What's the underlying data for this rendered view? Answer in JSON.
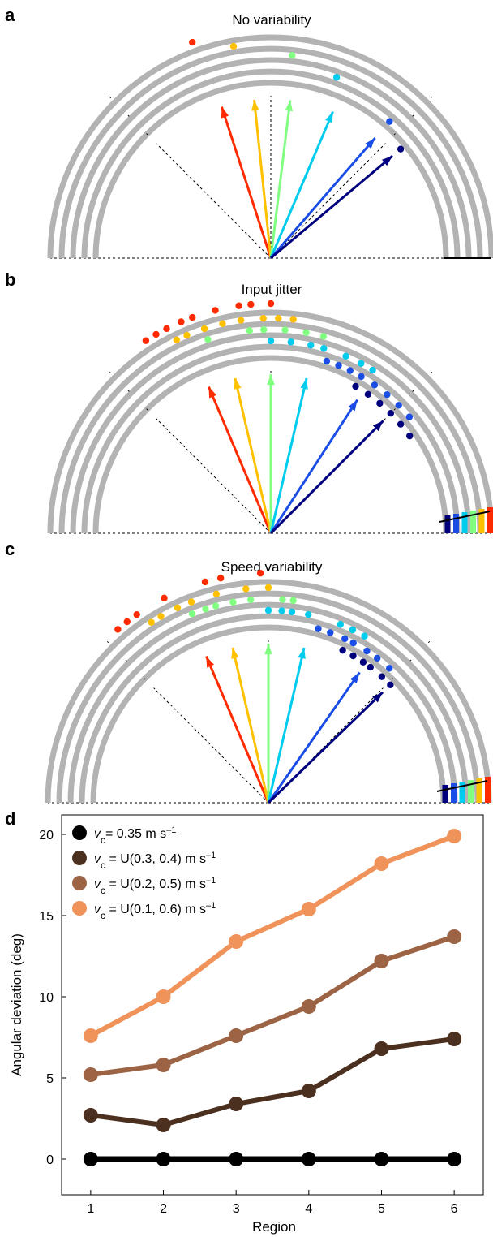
{
  "figure": {
    "panels": [
      {
        "letter": "a",
        "title": "No variability"
      },
      {
        "letter": "b",
        "title": "Input jitter"
      },
      {
        "letter": "c",
        "title": "Speed variability"
      },
      {
        "letter": "d",
        "title": ""
      }
    ]
  },
  "colors": {
    "track": "#b3b3b3",
    "directions": [
      "#ff2a00",
      "#ffc000",
      "#80ff80",
      "#00ccee",
      "#1a4de6",
      "#00007f"
    ]
  },
  "chart_data": [
    {
      "panel": "a",
      "type": "scatter",
      "title": "No variability",
      "description_units": "arrow angles in degrees from +x axis",
      "arrow_angles_deg": [
        108,
        96,
        83,
        67,
        49,
        40
      ],
      "dot_angles_deg": [
        [
          110
        ],
        [
          100
        ],
        [
          84
        ],
        [
          70
        ],
        [
          49
        ],
        [
          40
        ]
      ]
    },
    {
      "panel": "b",
      "type": "scatter",
      "title": "Input jitter",
      "arrow_angles_deg": [
        113,
        103,
        90,
        77,
        57,
        45
      ],
      "dot_angles_deg": [
        [
          123,
          120,
          117,
          113,
          110,
          104,
          98,
          95,
          90
        ],
        [
          116,
          113,
          108,
          103,
          98,
          92,
          88,
          84
        ],
        [
          108,
          96,
          92,
          86,
          80,
          75
        ],
        [
          90,
          84,
          78,
          74,
          67,
          62,
          58
        ],
        [
          72,
          68,
          64,
          60,
          55,
          50,
          45,
          40
        ],
        [
          60,
          55,
          50,
          45,
          40,
          35
        ]
      ]
    },
    {
      "panel": "c",
      "type": "scatter",
      "title": "Speed variability",
      "arrow_angles_deg": [
        113,
        103,
        90,
        77,
        55,
        44
      ],
      "dot_angles_deg": [
        [
          131,
          128,
          125,
          117,
          106,
          102,
          92
        ],
        [
          123,
          120,
          115,
          111,
          104,
          96,
          90
        ],
        [
          112,
          108,
          105,
          100,
          95,
          86,
          83
        ],
        [
          90,
          86,
          83,
          78,
          68,
          64,
          60
        ],
        [
          74,
          70,
          65,
          62,
          57,
          53,
          48
        ],
        [
          64,
          60,
          56,
          53,
          48,
          44
        ]
      ]
    },
    {
      "panel": "d",
      "type": "line",
      "title": "",
      "xlabel": "Region",
      "ylabel": "Angular deviation (deg)",
      "x": [
        1,
        2,
        3,
        4,
        5,
        6
      ],
      "xlim": [
        0.6,
        6.4
      ],
      "ylim": [
        -2.2,
        21.2
      ],
      "xticks": [
        "1",
        "2",
        "3",
        "4",
        "5",
        "6"
      ],
      "yticks": [
        "0",
        "5",
        "10",
        "15",
        "20"
      ],
      "legend_position": "top-left",
      "series": [
        {
          "name_prefix": "v",
          "name_sub": "c",
          "name_rest": "= 0.35 m s",
          "name_sup": "–1",
          "color": "#000000",
          "values": [
            0,
            0,
            0,
            0,
            0,
            0
          ]
        },
        {
          "name_prefix": "v",
          "name_sub": "c",
          "name_rest": " = U(0.3, 0.4) m s",
          "name_sup": "–1",
          "color": "#4b2f1f",
          "values": [
            2.7,
            2.1,
            3.4,
            4.2,
            6.8,
            7.4
          ]
        },
        {
          "name_prefix": "v",
          "name_sub": "c",
          "name_rest": " = U(0.2, 0.5) m s",
          "name_sup": "–1",
          "color": "#9c6444",
          "values": [
            5.2,
            5.8,
            7.6,
            9.4,
            12.2,
            13.7
          ]
        },
        {
          "name_prefix": "v",
          "name_sub": "c",
          "name_rest": " = U(0.1, 0.6) m s",
          "name_sup": "–1",
          "color": "#f0935a",
          "values": [
            7.6,
            10.0,
            13.4,
            15.4,
            18.2,
            19.9
          ]
        }
      ]
    }
  ]
}
